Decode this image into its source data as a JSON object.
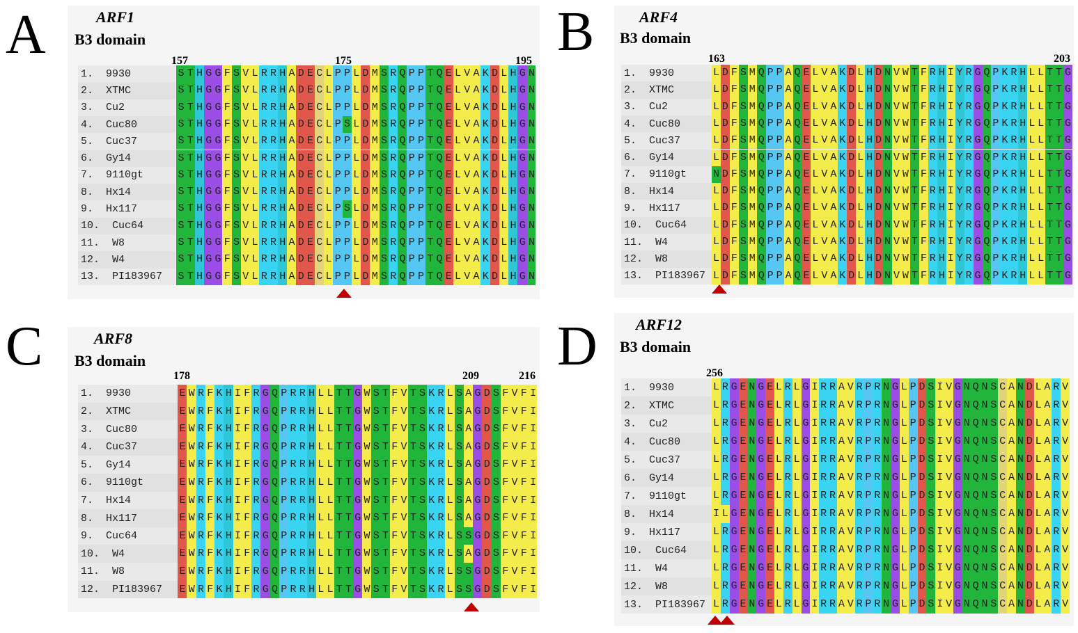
{
  "colors": {
    "hydrophobic": "#f3ec4a",
    "positive": "#38d4f2",
    "negative": "#e2574b",
    "polar": "#22b53c",
    "glycine": "#9a4ee6",
    "proline": "#56c7f2",
    "cysteine": "#e1d479",
    "aromatic": "#2fc7d6",
    "histidine": "#30c2e8",
    "marker": "#c00000"
  },
  "panels": [
    {
      "id": "A",
      "letter": "A",
      "gene": "ARF1",
      "subtitle": "B3 domain",
      "positions": [
        "157",
        "175",
        "195"
      ],
      "names": [
        "1.  9930",
        "2.  XTMC",
        "3.  Cu2",
        "4.  Cuc80",
        "5.  Cuc37",
        "6.  Gy14",
        "7.  9110gt",
        "8.  Hx14",
        "9.  Hx117",
        "10.  Cuc64",
        "11.  W8",
        "12.  W4",
        "13.  PI183967"
      ],
      "sequences": [
        "STHGGFSVLRRHADECLPPLDMSRQPPTQELVAKDLHGN",
        "STHGGFSVLRRHADECLPPLDMSRQPPTQELVAKDLHGN",
        "STHGGFSVLRRHADECLPPLDMSRQPPTQELVAKDLHGN",
        "STHGGFSVLRRHADECLPSLDMSRQPPTQELVAKDLHGN",
        "STHGGFSVLRRHADECLPPLDMSRQPPTQELVAKDLHGN",
        "STHGGFSVLRRHADECLPPLDMSRQPPTQELVAKDLHGN",
        "STHGGFSVLRRHADECLPPLDMSRQPPTQELVAKDLHGN",
        "STHGGFSVLRRHADECLPPLDMSRQPPTQELVAKDLHGN",
        "STHGGFSVLRRHADECLPSLDMSRQPPTQELVAKDLHGN",
        "STHGGFSVLRRHADECLPPLDMSRQPPTQELVAKDLHGN",
        "STHGGFSVLRRHADECLPPLDMSRQPPTQELVAKDLHGN",
        "STHGGFSVLRRHADECLPPLDMSRQPPTQELVAKDLHGN",
        "STHGGFSVLRRHADECLPPLDMSRQPPTQELVAKDLHGN"
      ]
    },
    {
      "id": "B",
      "letter": "B",
      "gene": "ARF4",
      "subtitle": "B3 domain",
      "positions": [
        "163",
        "203"
      ],
      "names": [
        "1.  9930",
        "2.  XTMC",
        "3.  Cu2",
        "4.  Cuc80",
        "5.  Cuc37",
        "6.  Gy14",
        "7.  9110gt",
        "8.  Hx14",
        "9.  Hx117",
        "10.  Cuc64",
        "11.  W4",
        "12.  W8",
        "13.  PI183967"
      ],
      "sequences": [
        "LDFSMQPPAQELVAKDLHDNVWTFRHIYRGQPKRHLLTTG",
        "LDFSMQPPAQELVAKDLHDNVWTFRHIYRGQPKRHLLTTG",
        "LDFSMQPPAQELVAKDLHDNVWTFRHIYRGQPKRHLLTTG",
        "LDFSMQPPAQELVAKDLHDNVWTFRHIYRGQPKRHLLTTG",
        "LDFSMQPPAQELVAKDLHDNVWTFRHIYRGQPKRHLLTTG",
        "LDFSMQPPAQELVAKDLHDNVWTFRHIYRGQPKRHLLTTG",
        "NDFSMQPPAQELVAKDLHDNVWTFRHIYRGQPKRHLLTTG",
        "LDFSMQPPAQELVAKDLHDNVWTFRHIYRGQPKRHLLTTG",
        "LDFSMQPPAQELVAKDLHDNVWTFRHIYRGQPKRHLLTTG",
        "LDFSMQPPAQELVAKDLHDNVWTFRHIYRGQPKRHLLTTG",
        "LDFSMQPPAQELVAKDLHDNVWTFRHIYRGQPKRHLLTTG",
        "LDFSMQPPAQELVAKDLHDNVWTFRHIYRGQPKRHLLTTG",
        "LDFSMQPPAQELVAKDLHDNVWTFRHIYRGQPKRHLLTTG"
      ]
    },
    {
      "id": "C",
      "letter": "C",
      "gene": "ARF8",
      "subtitle": "B3 domain",
      "positions": [
        "178",
        "209",
        "216"
      ],
      "names": [
        "1.  9930",
        "2.  XTMC",
        "3.  Cuc80",
        "4.  Cuc37",
        "5.  Gy14",
        "6.  9110gt",
        "7.  Hx14",
        "8.  Hx117",
        "9.  Cuc64",
        "10.  W4",
        "11.  W8",
        "12.  PI183967"
      ],
      "sequences": [
        "EWRFKHIFRGQPRRHLLTTGWSTFVTSKRLSAGDSFVFI",
        "EWRFKHIFRGQPRRHLLTTGWSTFVTSKRLSAGDSFVFI",
        "EWRFKHIFRGQPRRHLLTTGWSTFVTSKRLSAGDSFVFI",
        "EWRFKHIFRGQPRRHLLTTGWSTFVTSKRLSAGDSFVFI",
        "EWRFKHIFRGQPRRHLLTTGWSTFVTSKRLSAGDSFVFI",
        "EWRFKHIFRGQPRRHLLTTGWSTFVTSKRLSAGDSFVFI",
        "EWRFKHIFRGQPRRHLLTTGWSTFVTSKRLSAGDSFVFI",
        "EWRFKHIFRGQPRRHLLTTGWSTFVTSKRLSAGDSFVFI",
        "EWRFKHIFRGQPRRHLLTTGWSTFVTSKRLSSGDSFVFI",
        "EWRFKHIFRGQPRRHLLTTGWSTFVTSKRLSAGDSFVFI",
        "EWRFKHIFRGQPRRHLLTTGWSTFVTSKRLSSGDSFVFI",
        "EWRFKHIFRGQPRRHLLTTGWSTFVTSKRLSSGDSFVFI"
      ]
    },
    {
      "id": "D",
      "letter": "D",
      "gene": "ARF12",
      "subtitle": "B3 domain",
      "positions": [
        "256"
      ],
      "names": [
        "1.  9930",
        "2.  XTMC",
        "3.  Cu2",
        "4.  Cuc80",
        "5.  Cuc37",
        "6.  Gy14",
        "7.  9110gt",
        "8.  Hx14",
        "9.  Hx117",
        "10.  Cuc64",
        "11.  W4",
        "12.  W8",
        "13.  PI183967"
      ],
      "sequences": [
        "LRGENGELRLGIRRAVRPRNGLPDSIVGNQNSCANDLARV",
        "LRGENGELRLGIRRAVRPRNGLPDSIVGNQNSCANDLARV",
        "LRGENGELRLGIRRAVRPRNGLPDSIVGNQNSCANDLARV",
        "LRGENGELRLGIRRAVRPRNGLPDSIVGNQNSCANDLARV",
        "LRGENGELRLGIRRAVRPRNGLPDSIVGNQNSCANDLARV",
        "LRGENGELRLGIRRAVRPRNGLPDSIVGNQNSCANDLARV",
        "LRGENGELRLGIRRAVRPRNGLPDSIVGNQNSCANDLARV",
        "ILGENGELRLGIRRAVRPRNGLPDSIVGNQNSCANDLARV",
        "LRGENGELRLGIRRAVRPRNGLPDSIVGNQNSCANDLARV",
        "LRGENGELRLGIRRAVRPRNGLPDSIVGNQNSCANDLARV",
        "LRGENGELRLGIRRAVRPRNGLPDSIVGNQNSCANDLARV",
        "LRGENGELRLGIRRAVRPRNGLPDSIVGNQNSCANDLARV",
        "LRGENGELRLGIRRAVRPRNGLPDSIVGNQNSCANDLARV"
      ]
    }
  ]
}
